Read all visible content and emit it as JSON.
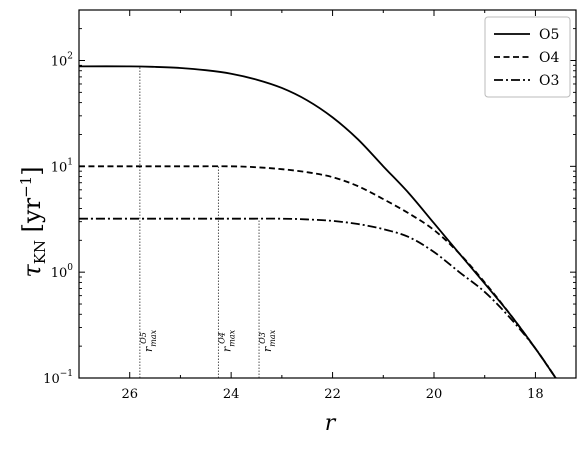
{
  "chart_data": {
    "type": "line",
    "title": "",
    "xlabel": "r",
    "ylabel": "τ_KN [yr^-1]",
    "x_reversed": true,
    "y_scale": "log",
    "xlim": [
      27,
      17.2
    ],
    "ylim": [
      0.1,
      300
    ],
    "grid": false,
    "legend_position": "top-right",
    "x_ticks": [
      26,
      24,
      22,
      20,
      18
    ],
    "y_ticks": [
      {
        "value": 0.1,
        "label": "10",
        "exp": "−1"
      },
      {
        "value": 1,
        "label": "10",
        "exp": "0"
      },
      {
        "value": 10,
        "label": "10",
        "exp": "1"
      },
      {
        "value": 100,
        "label": "10",
        "exp": "2"
      }
    ],
    "series": [
      {
        "name": "O5",
        "style": "solid",
        "x": [
          27,
          26,
          25.5,
          25,
          24.5,
          24,
          23.5,
          23,
          22.5,
          22,
          21.5,
          21,
          20.5,
          20,
          19.5,
          19,
          18.5,
          18,
          17.6
        ],
        "y": [
          88,
          88,
          87,
          85,
          81,
          75,
          66,
          55,
          42,
          29,
          18,
          10,
          5.6,
          2.9,
          1.5,
          0.78,
          0.4,
          0.19,
          0.1
        ]
      },
      {
        "name": "O4",
        "style": "dashed",
        "x": [
          27,
          25,
          24,
          23.5,
          23,
          22.5,
          22,
          21.5,
          21,
          20.5,
          20,
          19.5,
          19,
          18.5,
          18,
          17.6
        ],
        "y": [
          10,
          10,
          10,
          9.8,
          9.4,
          8.8,
          7.9,
          6.5,
          4.9,
          3.6,
          2.5,
          1.5,
          0.8,
          0.4,
          0.19,
          0.1
        ]
      },
      {
        "name": "O3",
        "style": "dashdot",
        "x": [
          27,
          25,
          24,
          23,
          22.5,
          22,
          21.5,
          21,
          20.5,
          20,
          19.5,
          19,
          18.5,
          18,
          17.6
        ],
        "y": [
          3.2,
          3.2,
          3.2,
          3.2,
          3.15,
          3.05,
          2.85,
          2.55,
          2.15,
          1.55,
          1.0,
          0.65,
          0.37,
          0.19,
          0.1
        ]
      }
    ],
    "vlines": [
      {
        "x": 25.8,
        "label": "r",
        "sub": "max",
        "sup": "O5"
      },
      {
        "x": 24.25,
        "label": "r",
        "sub": "max",
        "sup": "O4"
      },
      {
        "x": 23.45,
        "label": "r",
        "sub": "max",
        "sup": "O3"
      }
    ]
  }
}
